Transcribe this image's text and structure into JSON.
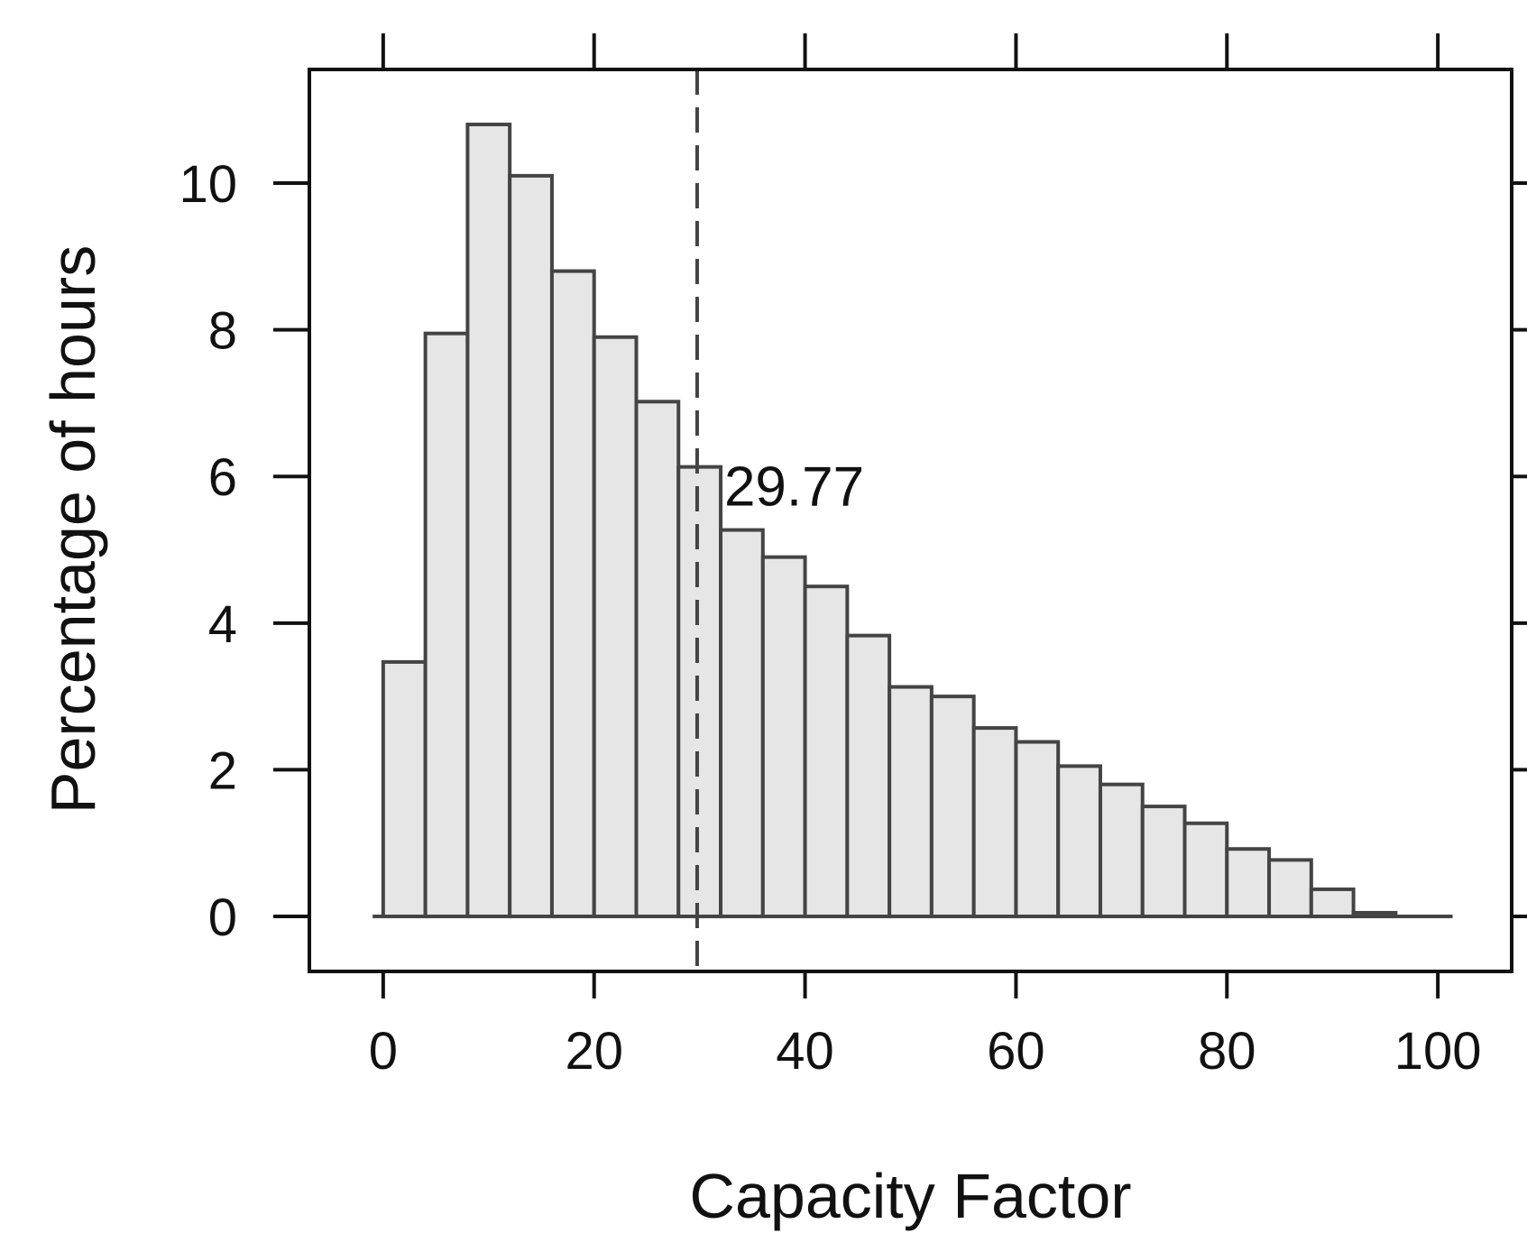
{
  "chart_data": {
    "type": "bar",
    "subtype": "histogram",
    "xlabel": "Capacity Factor",
    "ylabel": "Percentage of hours",
    "x_ticks": [
      0,
      20,
      40,
      60,
      80,
      100
    ],
    "y_ticks": [
      0,
      2,
      4,
      6,
      8,
      10
    ],
    "xlim": [
      -7,
      107
    ],
    "ylim": [
      -0.75,
      11.55
    ],
    "bin_edges": [
      0,
      4,
      8,
      12,
      16,
      20,
      24,
      28,
      32,
      36,
      40,
      44,
      48,
      52,
      56,
      60,
      64,
      68,
      72,
      76,
      80,
      84,
      88,
      92,
      96,
      100
    ],
    "values": [
      3.47,
      7.95,
      10.8,
      10.1,
      8.8,
      7.9,
      7.02,
      6.13,
      5.27,
      4.9,
      4.5,
      3.83,
      3.13,
      3.0,
      2.57,
      2.38,
      2.05,
      1.8,
      1.5,
      1.27,
      0.92,
      0.77,
      0.37,
      0.05,
      0.0
    ],
    "bar_fill": "#e6e6e6",
    "bar_stroke": "#444444",
    "reference_line": {
      "x": 29.77,
      "style": "dashed",
      "label": "29.77"
    },
    "grid": false,
    "legend": "none"
  }
}
